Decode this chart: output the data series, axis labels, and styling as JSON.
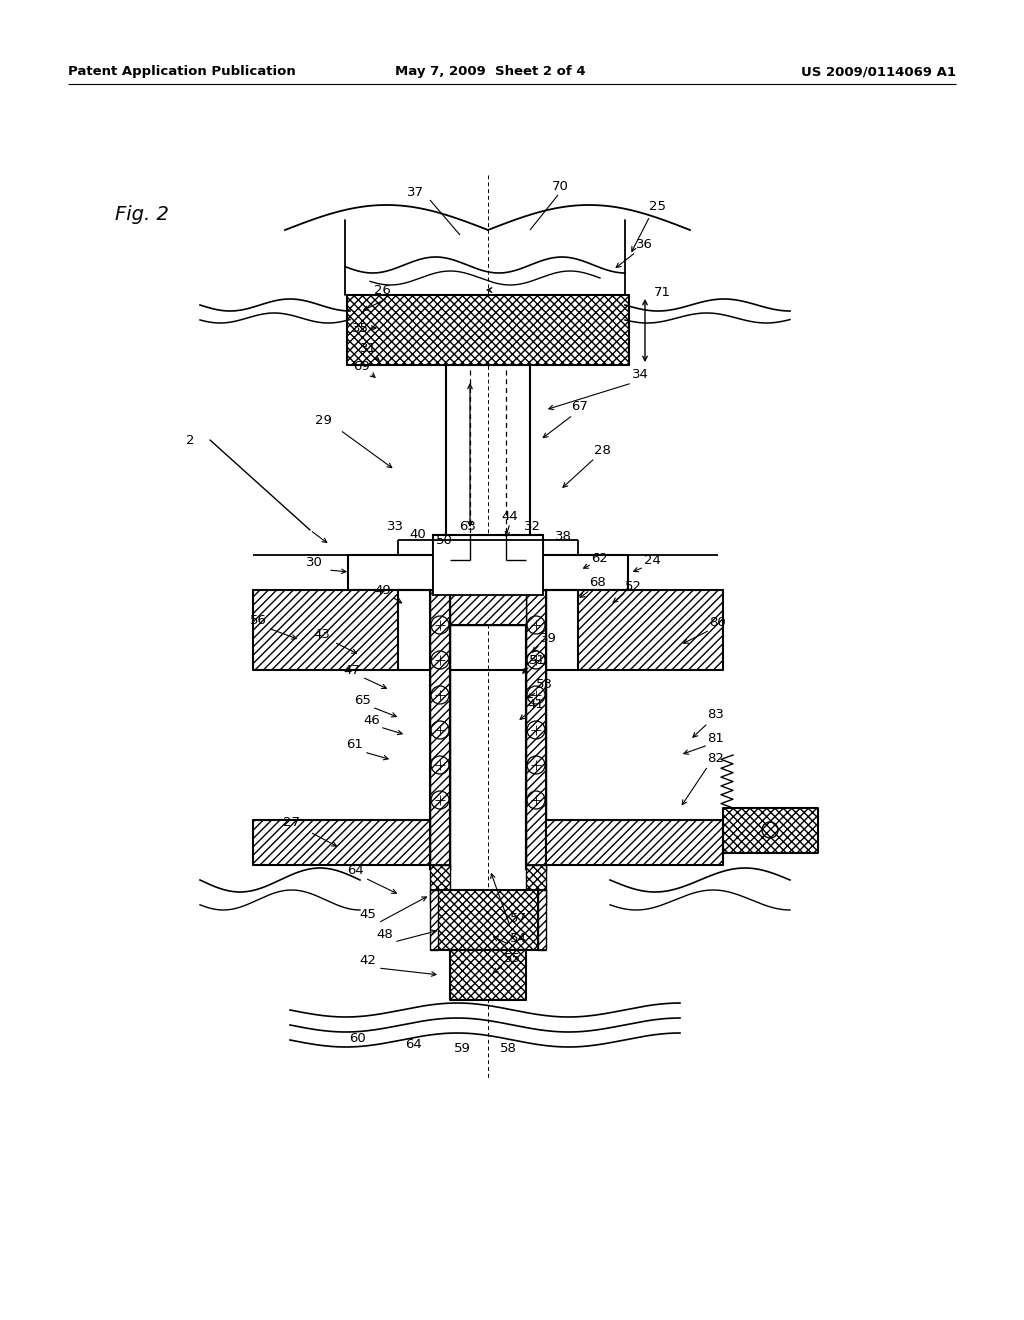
{
  "header_left": "Patent Application Publication",
  "header_mid": "May 7, 2009  Sheet 2 of 4",
  "header_right": "US 2009/0114069 A1",
  "bg_color": "#ffffff"
}
